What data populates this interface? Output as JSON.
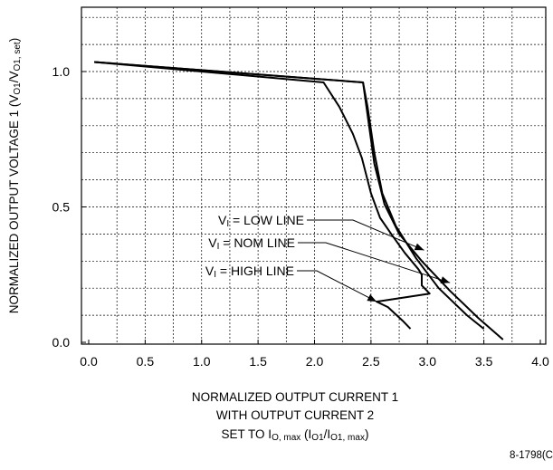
{
  "chart_data": {
    "type": "line",
    "xlabel_lines": [
      "NORMALIZED OUTPUT CURRENT 1",
      "WITH OUTPUT CURRENT 2",
      "SET TO IO, max (IO1/IO1, max)"
    ],
    "ylabel": "NORMALIZED OUTPUT VOLTAGE 1 (VO1/VO1, set)",
    "figure_id": "8-1798(C",
    "xlim": [
      0.0,
      4.0
    ],
    "ylim": [
      0.0,
      1.0
    ],
    "x_ticks": [
      0.0,
      0.5,
      1.0,
      1.5,
      2.0,
      2.5,
      3.0,
      3.5,
      4.0
    ],
    "x_tick_labels": [
      "0.0",
      "0.5",
      "1.0",
      "1.5",
      "2.0",
      "2.5",
      "3.0",
      "3.5",
      "4.0"
    ],
    "y_ticks": [
      0.0,
      0.5,
      1.0
    ],
    "y_tick_labels": [
      "0.0",
      "0.5",
      "1.0"
    ],
    "grid": true,
    "series": [
      {
        "name": "VI = LOW LINE",
        "points": [
          [
            0.05,
            1.035
          ],
          [
            2.43,
            0.96
          ],
          [
            2.47,
            0.87
          ],
          [
            2.53,
            0.7
          ],
          [
            2.6,
            0.55
          ],
          [
            2.72,
            0.43
          ],
          [
            2.9,
            0.31
          ],
          [
            3.1,
            0.2
          ],
          [
            3.35,
            0.1
          ],
          [
            3.5,
            0.05
          ]
        ]
      },
      {
        "name": "VI = NOM LINE",
        "points": [
          [
            0.05,
            1.035
          ],
          [
            2.43,
            0.96
          ],
          [
            2.47,
            0.84
          ],
          [
            2.53,
            0.66
          ],
          [
            2.62,
            0.51
          ],
          [
            2.75,
            0.4
          ],
          [
            2.95,
            0.3
          ],
          [
            3.2,
            0.19
          ],
          [
            3.45,
            0.09
          ],
          [
            3.67,
            0.01
          ]
        ]
      },
      {
        "name": "VI = HIGH LINE",
        "points": [
          [
            0.05,
            1.035
          ],
          [
            2.08,
            0.96
          ],
          [
            2.22,
            0.87
          ],
          [
            2.34,
            0.77
          ],
          [
            2.42,
            0.68
          ],
          [
            2.5,
            0.55
          ],
          [
            2.58,
            0.46
          ],
          [
            2.68,
            0.4
          ],
          [
            2.8,
            0.33
          ],
          [
            2.92,
            0.27
          ],
          [
            2.95,
            0.25
          ],
          [
            2.95,
            0.21
          ],
          [
            3.02,
            0.18
          ],
          [
            2.55,
            0.15
          ],
          [
            2.65,
            0.13
          ],
          [
            2.78,
            0.08
          ],
          [
            2.85,
            0.05
          ]
        ]
      }
    ],
    "annotations": [
      {
        "prefix": "V",
        "sub": "I",
        "text": " = LOW LINE",
        "arrow_to": [
          2.97,
          0.34
        ]
      },
      {
        "prefix": "V",
        "sub": "I",
        "text": " = NOM LINE",
        "arrow_to": [
          3.2,
          0.22
        ]
      },
      {
        "prefix": "V",
        "sub": "I",
        "text": " = HIGH LINE",
        "arrow_to": [
          2.55,
          0.15
        ]
      }
    ]
  }
}
